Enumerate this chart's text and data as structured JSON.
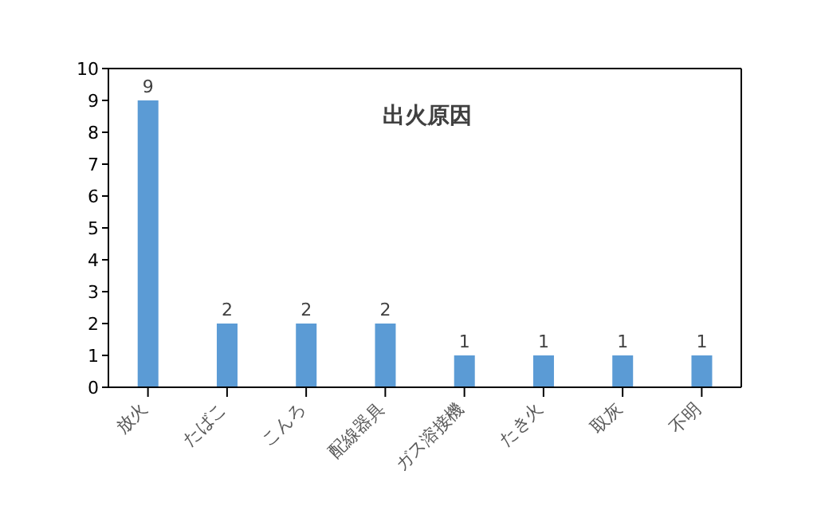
{
  "chart_data": {
    "type": "bar",
    "title": "出火原因",
    "categories": [
      "放火",
      "たばこ",
      "こんろ",
      "配線器具",
      "ガス溶接機",
      "たき火",
      "取灰",
      "不明"
    ],
    "values": [
      9,
      2,
      2,
      2,
      1,
      1,
      1,
      1
    ],
    "color": "#5b9bd5",
    "ylim": [
      0,
      10
    ],
    "yticks": [
      0,
      1,
      2,
      3,
      4,
      5,
      6,
      7,
      8,
      9,
      10
    ],
    "grid": false,
    "data_labels": true
  }
}
